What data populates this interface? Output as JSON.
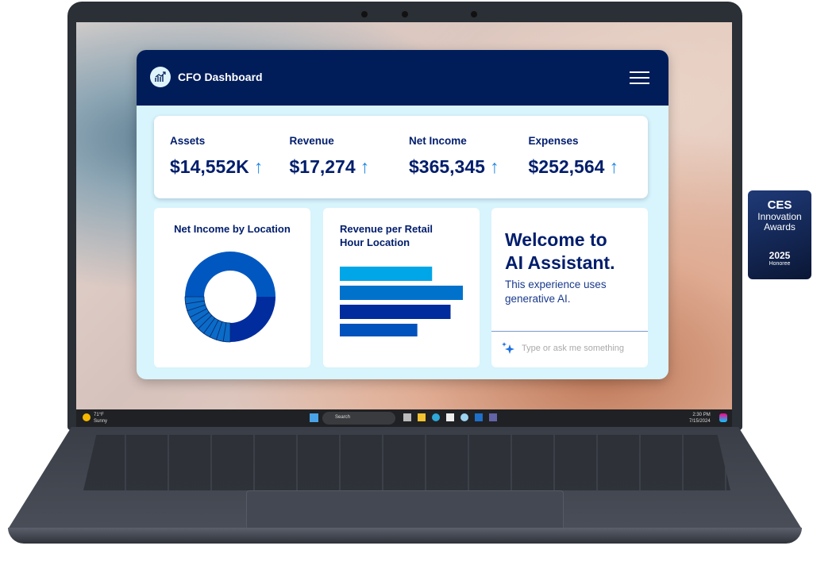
{
  "dashboard": {
    "title": "CFO Dashboard",
    "menu_icon": "hamburger-icon",
    "logo_icon": "chart-growth-icon",
    "kpis": [
      {
        "label": "Assets",
        "value": "$14,552K",
        "trend": "↑"
      },
      {
        "label": "Revenue",
        "value": "$17,274",
        "trend": "↑"
      },
      {
        "label": "Net Income",
        "value": "$365,345",
        "trend": "↑"
      },
      {
        "label": "Expenses",
        "value": "$252,564",
        "trend": "↑"
      }
    ],
    "donut": {
      "title": "Net Income by Location"
    },
    "bars": {
      "title_line1": "Revenue per Retail",
      "title_line2": "Hour Location"
    },
    "assistant": {
      "heading_line1": "Welcome to",
      "heading_line2": "AI Assistant.",
      "sub_line1": "This experience uses",
      "sub_line2": "generative AI.",
      "placeholder": "Type or ask me something",
      "sparkle_icon": "sparkle-icon"
    }
  },
  "chart_data": [
    {
      "type": "pie",
      "title": "Net Income by Location",
      "donut": true,
      "slices": [
        50,
        25,
        2.5,
        2.5,
        2.5,
        2.5,
        2.5,
        2.5,
        2.5,
        2.5,
        2.5,
        2.5
      ],
      "colors": [
        "#0057c0",
        "#002c9e",
        "#0a6cc8"
      ]
    },
    {
      "type": "bar",
      "orientation": "horizontal",
      "title": "Revenue per Retail Hour Location",
      "values": [
        75,
        100,
        90,
        63
      ],
      "colors": [
        "#00a6e8",
        "#0072cc",
        "#002c9e",
        "#0052bd"
      ]
    }
  ],
  "taskbar": {
    "weather_temp": "71°F",
    "weather_text": "Sunny",
    "search": "Search",
    "time": "2:30 PM",
    "date": "7/15/2024"
  },
  "badge": {
    "brand": "CES",
    "line1": "Innovation",
    "line2": "Awards",
    "year": "2025",
    "tier": "Honoree"
  }
}
